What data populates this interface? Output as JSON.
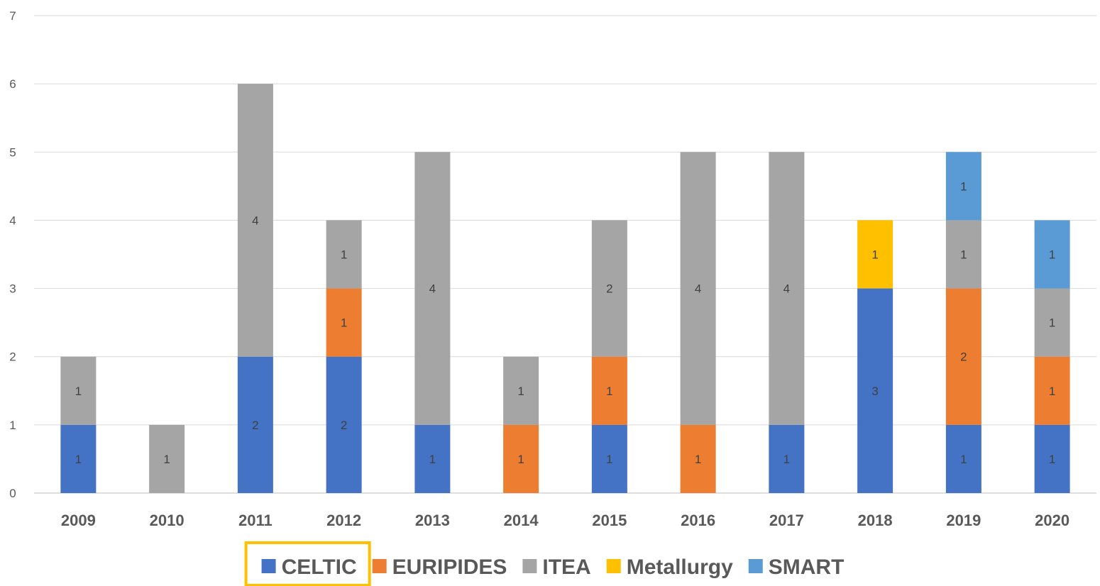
{
  "chart_data": {
    "type": "bar",
    "stacked": true,
    "categories": [
      "2009",
      "2010",
      "2011",
      "2012",
      "2013",
      "2014",
      "2015",
      "2016",
      "2017",
      "2018",
      "2019",
      "2020"
    ],
    "series": [
      {
        "name": "CELTIC",
        "color": "#4472C4",
        "values": [
          1,
          0,
          2,
          2,
          1,
          0,
          1,
          0,
          1,
          3,
          1,
          1
        ]
      },
      {
        "name": "EURIPIDES",
        "color": "#ED7D31",
        "values": [
          0,
          0,
          0,
          1,
          0,
          1,
          1,
          1,
          0,
          0,
          2,
          1
        ]
      },
      {
        "name": "ITEA",
        "color": "#A5A5A5",
        "values": [
          1,
          1,
          4,
          1,
          4,
          1,
          2,
          4,
          4,
          0,
          1,
          1
        ]
      },
      {
        "name": "Metallurgy",
        "color": "#FFC000",
        "values": [
          0,
          0,
          0,
          0,
          0,
          0,
          0,
          0,
          0,
          1,
          0,
          0
        ]
      },
      {
        "name": "SMART",
        "color": "#5B9BD5",
        "values": [
          0,
          0,
          0,
          0,
          0,
          0,
          0,
          0,
          0,
          0,
          1,
          1
        ]
      }
    ],
    "ylim": [
      0,
      7
    ],
    "yticks": [
      0,
      1,
      2,
      3,
      4,
      5,
      6,
      7
    ],
    "grid": true,
    "data_labels": true,
    "legend": {
      "position": "bottom",
      "highlighted": "CELTIC",
      "highlight_color": "#FFC000"
    },
    "title": "",
    "xlabel": "",
    "ylabel": ""
  }
}
